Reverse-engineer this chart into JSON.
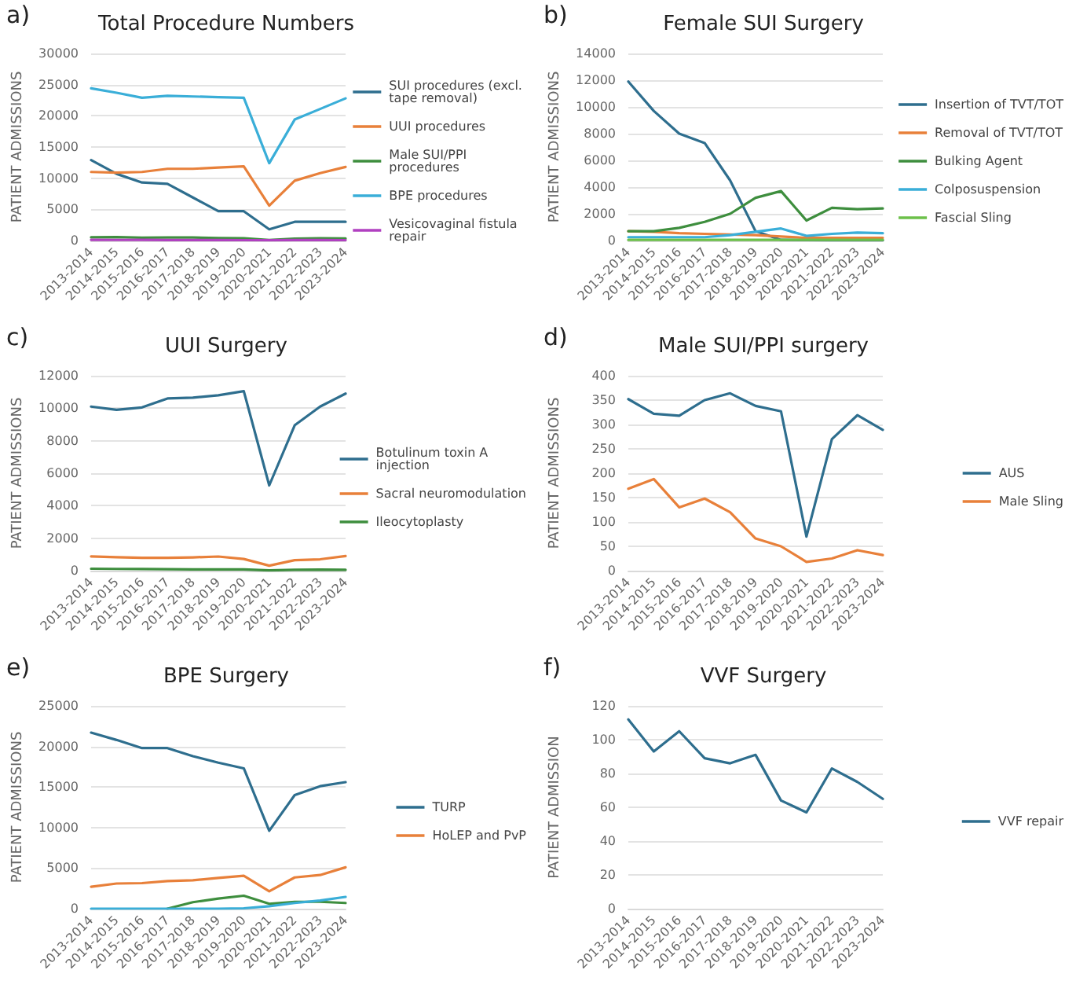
{
  "chart_data": [
    {
      "type": "line",
      "title": "Total Procedure Numbers",
      "ylabel": "PATIENT ADMISSIONS",
      "annotations": [
        "a)"
      ],
      "categories": [
        "2013-2014",
        "2014-2015",
        "2015-2016",
        "2016-2017",
        "2017-2018",
        "2018-2019",
        "2019-2020",
        "2020-2021",
        "2021-2022",
        "2022-2023",
        "2023-2024"
      ],
      "series": [
        {
          "name": "SUI procedures (excl. tape removal)",
          "color": "#2e6e8e",
          "values": [
            12900,
            10700,
            9300,
            9100,
            6900,
            4700,
            4700,
            1800,
            3000,
            3000,
            3000
          ]
        },
        {
          "name": "UUI procedures",
          "color": "#e8803a",
          "values": [
            11000,
            10900,
            11000,
            11500,
            11500,
            11700,
            11900,
            5600,
            9600,
            10800,
            11800
          ]
        },
        {
          "name": "Male SUI/PPI procedures",
          "color": "#3e8e3e",
          "values": [
            520,
            540,
            450,
            500,
            480,
            400,
            380,
            90,
            290,
            360,
            320
          ]
        },
        {
          "name": "BPE procedures",
          "color": "#3aaed8",
          "values": [
            24400,
            23700,
            22900,
            23200,
            23100,
            23000,
            22900,
            12400,
            19400,
            21100,
            22800
          ]
        },
        {
          "name": "Vesicovaginal fistula repair",
          "color": "#b040c0",
          "values": [
            112,
            93,
            105,
            89,
            86,
            91,
            64,
            57,
            83,
            75,
            65
          ]
        }
      ],
      "ylim": [
        0,
        30000
      ],
      "yticks": [
        0,
        5000,
        10000,
        15000,
        20000,
        25000,
        30000
      ],
      "grid": "y",
      "legend": "right",
      "marker": "none",
      "line_style": "solid"
    },
    {
      "type": "line",
      "title": "Female SUI Surgery",
      "ylabel": "PATIENT ADMISSIONS",
      "annotations": [
        "b)"
      ],
      "categories": [
        "2013-2014",
        "2014-2015",
        "2015-2016",
        "2016-2017",
        "2017-2018",
        "2018-2019",
        "2019-2020",
        "2020-2021",
        "2021-2022",
        "2022-2023",
        "2023-2024"
      ],
      "series": [
        {
          "name": "Insertion of TVT/TOT",
          "color": "#2e6e8e",
          "values": [
            11900,
            9700,
            8000,
            7300,
            4500,
            700,
            50,
            30,
            20,
            20,
            20
          ]
        },
        {
          "name": "Removal of TVT/TOT",
          "color": "#e8803a",
          "values": [
            700,
            650,
            550,
            500,
            450,
            400,
            300,
            200,
            200,
            200,
            200
          ]
        },
        {
          "name": "Bulking Agent",
          "color": "#3e8e3e",
          "values": [
            700,
            700,
            950,
            1400,
            2000,
            3200,
            3700,
            1500,
            2450,
            2350,
            2400
          ]
        },
        {
          "name": "Colposuspension",
          "color": "#3aaed8",
          "values": [
            250,
            250,
            250,
            250,
            400,
            650,
            900,
            350,
            500,
            600,
            550
          ]
        },
        {
          "name": "Fascial Sling",
          "color": "#6cc04a",
          "values": [
            50,
            50,
            50,
            50,
            50,
            50,
            50,
            50,
            50,
            50,
            50
          ]
        }
      ],
      "ylim": [
        0,
        14000
      ],
      "yticks": [
        0,
        2000,
        4000,
        6000,
        8000,
        10000,
        12000,
        14000
      ],
      "grid": "y",
      "legend": "right",
      "marker": "none",
      "line_style": "solid"
    },
    {
      "type": "line",
      "title": "UUI Surgery",
      "ylabel": "PATIENT ADMISSIONS",
      "annotations": [
        "c)"
      ],
      "categories": [
        "2013-2014",
        "2014-2015",
        "2015-2016",
        "2016-2017",
        "2017-2018",
        "2018-2019",
        "2019-2020",
        "2020-2021",
        "2021-2022",
        "2022-2023",
        "2023-2024"
      ],
      "series": [
        {
          "name": "Botulinum toxin A injection",
          "color": "#2e6e8e",
          "values": [
            10100,
            9900,
            10050,
            10600,
            10650,
            10800,
            11050,
            5250,
            8950,
            10100,
            10900
          ]
        },
        {
          "name": "Sacral neuromodulation",
          "color": "#e8803a",
          "values": [
            880,
            830,
            790,
            790,
            820,
            870,
            720,
            310,
            650,
            700,
            900
          ]
        },
        {
          "name": "Ileocytoplasty",
          "color": "#3e8e3e",
          "values": [
            120,
            110,
            100,
            90,
            80,
            80,
            80,
            20,
            50,
            70,
            50
          ]
        }
      ],
      "ylim": [
        0,
        12000
      ],
      "yticks": [
        0,
        2000,
        4000,
        6000,
        8000,
        10000,
        12000
      ],
      "grid": "y",
      "legend": "right",
      "marker": "none",
      "line_style": "solid"
    },
    {
      "type": "line",
      "title": "Male SUI/PPI surgery",
      "ylabel": "PATIENT ADMISSIONS",
      "annotations": [
        "d)"
      ],
      "categories": [
        "2013-2014",
        "2014-2015",
        "2015-2016",
        "2016-2017",
        "2017-2018",
        "2018-2019",
        "2019-2020",
        "2020-2021",
        "2021-2022",
        "2022-2023",
        "2023-2024"
      ],
      "series": [
        {
          "name": "AUS",
          "color": "#2e6e8e",
          "values": [
            352,
            322,
            318,
            350,
            364,
            338,
            327,
            70,
            270,
            319,
            289
          ]
        },
        {
          "name": "Male Sling",
          "color": "#e8803a",
          "values": [
            168,
            188,
            130,
            148,
            120,
            66,
            50,
            18,
            25,
            42,
            32
          ]
        }
      ],
      "ylim": [
        0,
        400
      ],
      "yticks": [
        0,
        50,
        100,
        150,
        200,
        250,
        300,
        350,
        400
      ],
      "grid": "y",
      "legend": "right",
      "marker": "none",
      "line_style": "solid"
    },
    {
      "type": "line",
      "title": "BPE Surgery",
      "ylabel": "PATIENT ADMISSIONS",
      "annotations": [
        "e)"
      ],
      "categories": [
        "2013-2014",
        "2014-2015",
        "2015-2016",
        "2016-2017",
        "2017-2018",
        "2018-2019",
        "2019-2020",
        "2020-2021",
        "2021-2022",
        "2022-2023",
        "2023-2024"
      ],
      "series": [
        {
          "name": "TURP",
          "color": "#2e6e8e",
          "values": [
            21700,
            20800,
            19800,
            19800,
            18800,
            18000,
            17300,
            9600,
            14000,
            15100,
            15600
          ]
        },
        {
          "name": "HoLEP and PvP",
          "color": "#e8803a",
          "values": [
            2700,
            3100,
            3150,
            3400,
            3500,
            3800,
            4050,
            2150,
            3850,
            4150,
            5100
          ]
        },
        {
          "color": "#3e8e3e",
          "values": [
            null,
            null,
            null,
            0,
            800,
            1250,
            1600,
            600,
            850,
            850,
            700
          ]
        },
        {
          "color": "#3aaed8",
          "values": [
            0,
            0,
            0,
            0,
            0,
            0,
            50,
            300,
            700,
            1000,
            1450
          ]
        }
      ],
      "ylim": [
        0,
        25000
      ],
      "yticks": [
        0,
        5000,
        10000,
        15000,
        20000,
        25000
      ],
      "grid": "y",
      "legend": "right",
      "marker": "none",
      "line_style": "solid"
    },
    {
      "type": "line",
      "title": "VVF Surgery",
      "ylabel": "PATIENT ADMISSION",
      "annotations": [
        "f)"
      ],
      "categories": [
        "2013-2014",
        "2014-2015",
        "2015-2016",
        "2016-2017",
        "2017-2018",
        "2018-2019",
        "2019-2020",
        "2020-2021",
        "2021-2022",
        "2022-2023",
        "2023-2024"
      ],
      "series": [
        {
          "name": "VVF repair",
          "color": "#2e6e8e",
          "values": [
            112,
            93,
            105,
            89,
            86,
            91,
            64,
            57,
            83,
            75,
            65
          ]
        }
      ],
      "ylim": [
        0,
        120
      ],
      "yticks": [
        0,
        20,
        40,
        60,
        80,
        100,
        120
      ],
      "grid": "y",
      "legend": "right",
      "marker": "none",
      "line_style": "solid"
    }
  ]
}
